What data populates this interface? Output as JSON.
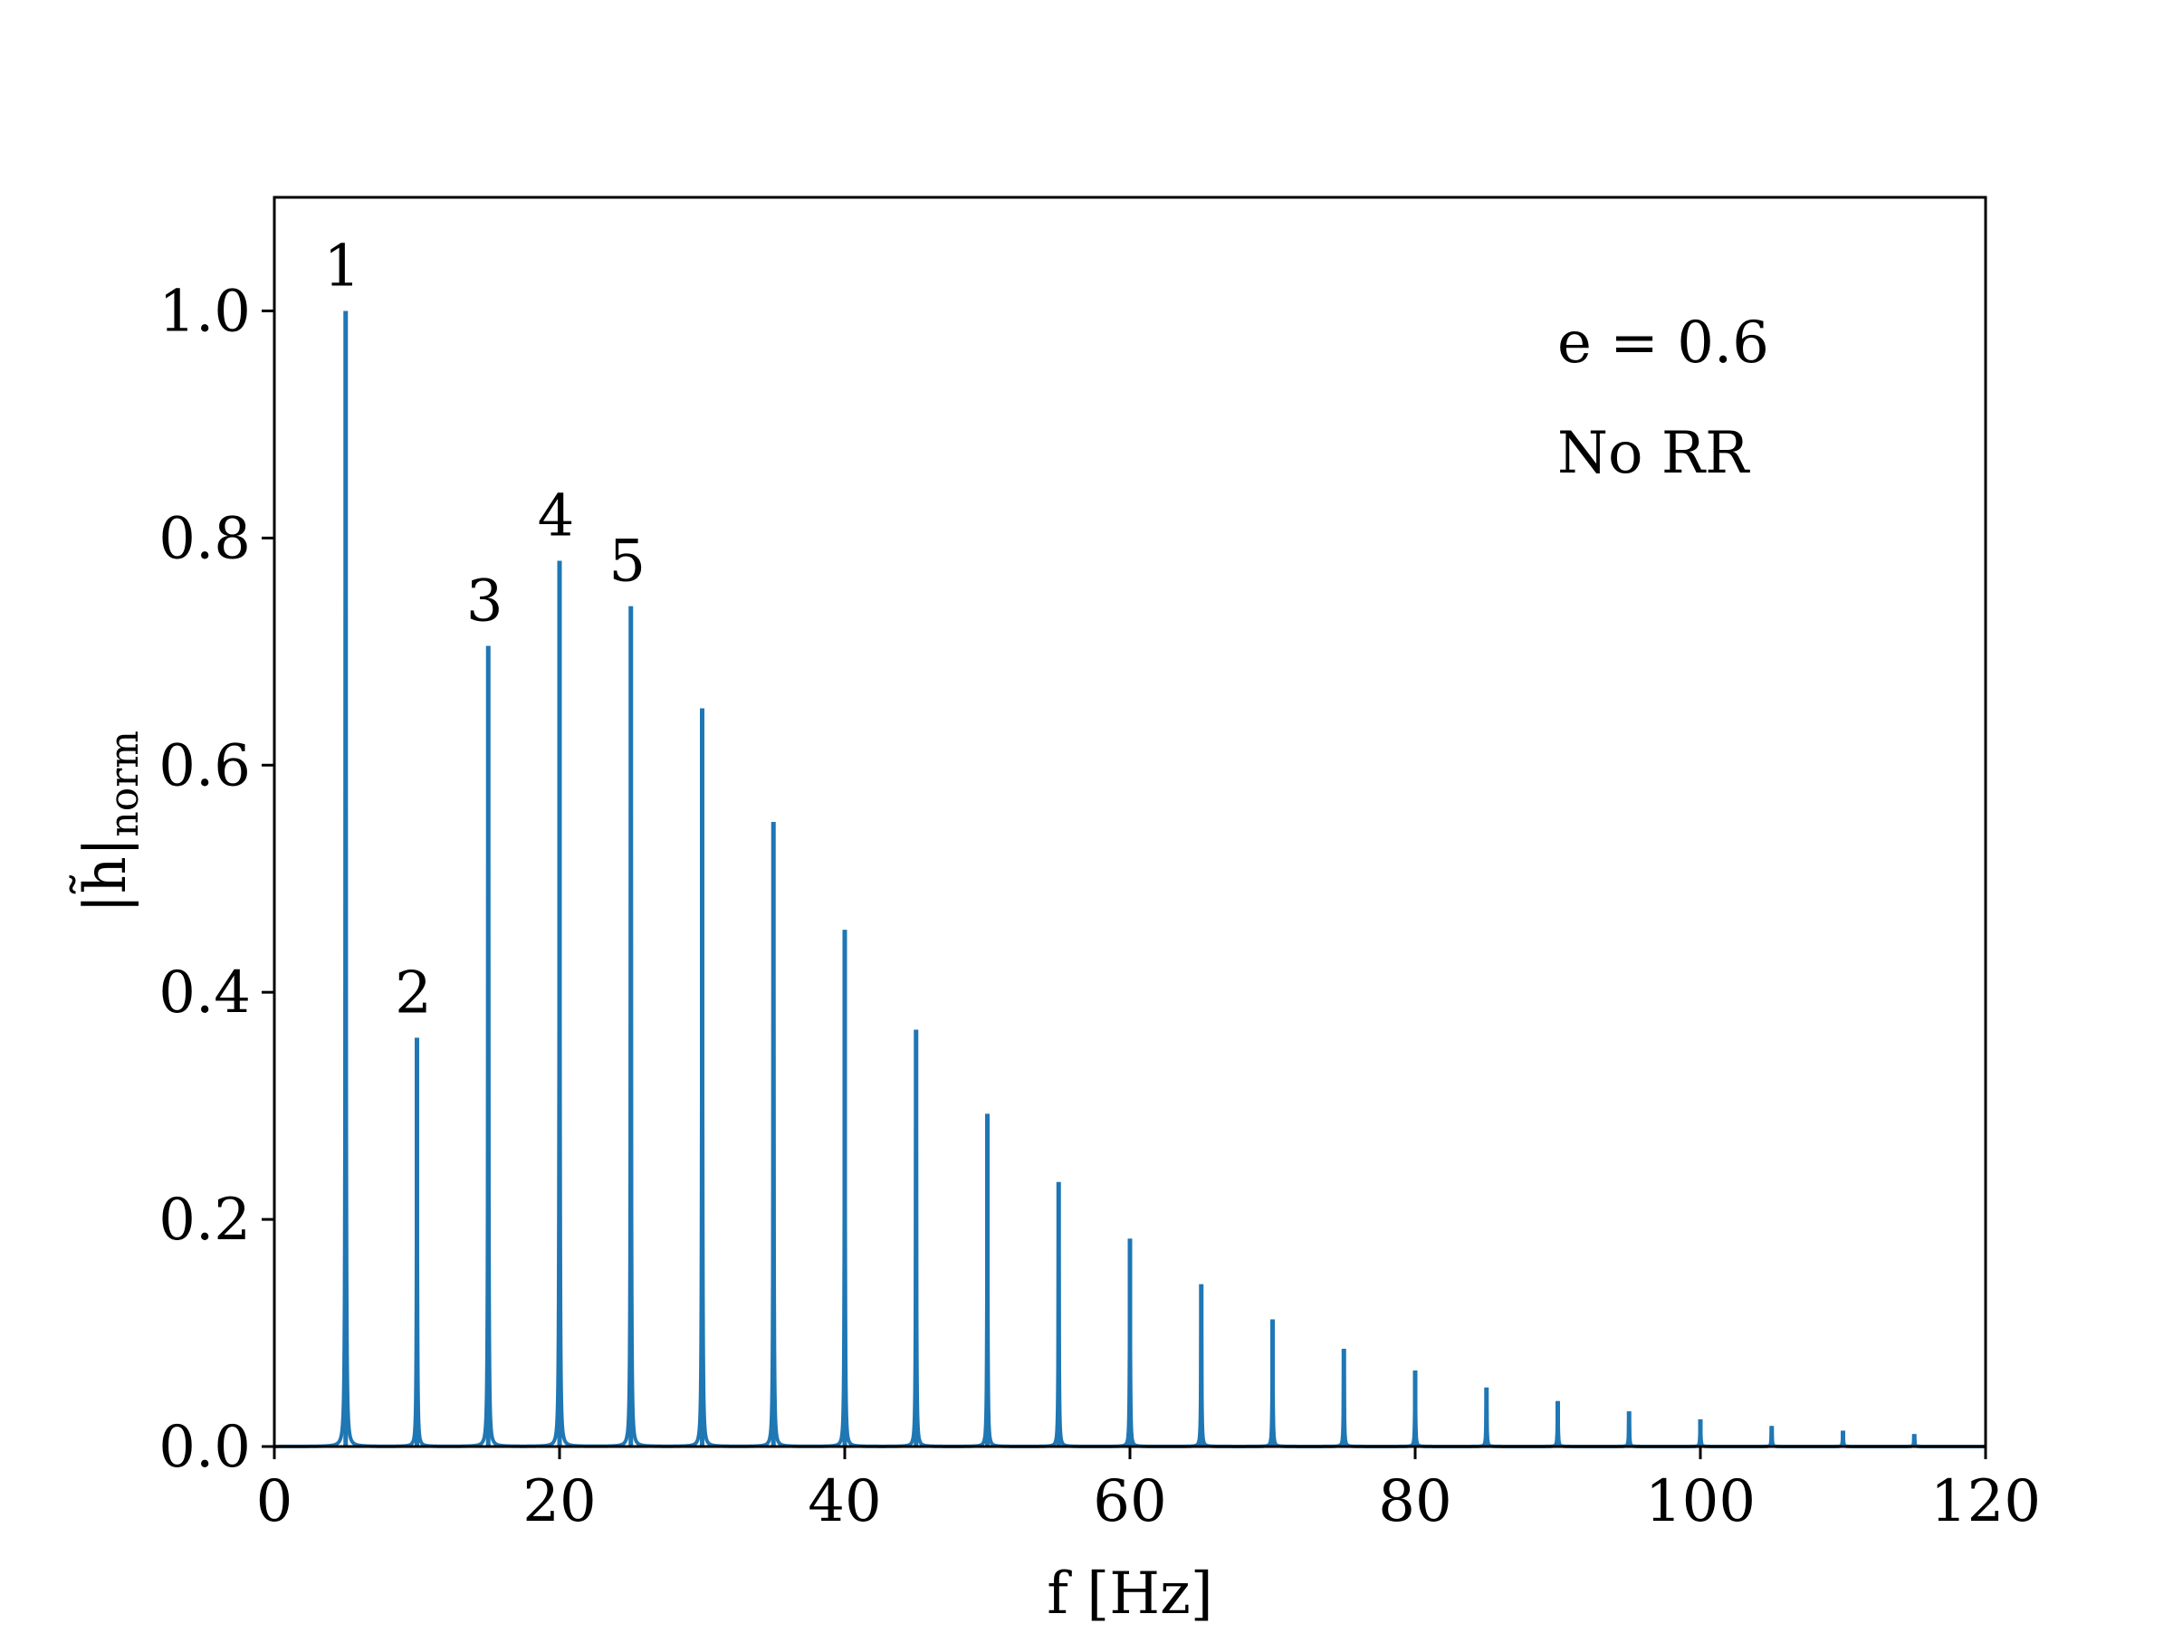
{
  "chart_data": {
    "type": "line",
    "title": "",
    "xlabel": "f [Hz]",
    "ylabel": {
      "main": "|h̃|",
      "subscript": "norm"
    },
    "xlim": [
      0,
      120
    ],
    "ylim": [
      0,
      1.1
    ],
    "xticks": [
      0,
      20,
      40,
      60,
      80,
      100,
      120
    ],
    "yticks": [
      0.0,
      0.2,
      0.4,
      0.6,
      0.8,
      1.0
    ],
    "xtick_labels": [
      "0",
      "20",
      "40",
      "60",
      "80",
      "100",
      "120"
    ],
    "ytick_labels": [
      "0.0",
      "0.2",
      "0.4",
      "0.6",
      "0.8",
      "1.0"
    ],
    "grid": false,
    "legend": "none",
    "series": [
      {
        "color": "#1f77b4",
        "peaks": [
          {
            "f": 5,
            "amp": 1.0
          },
          {
            "f": 10,
            "amp": 0.36
          },
          {
            "f": 15,
            "amp": 0.705
          },
          {
            "f": 20,
            "amp": 0.78
          },
          {
            "f": 25,
            "amp": 0.74
          },
          {
            "f": 30,
            "amp": 0.65
          },
          {
            "f": 35,
            "amp": 0.55
          },
          {
            "f": 40,
            "amp": 0.455
          },
          {
            "f": 45,
            "amp": 0.367
          },
          {
            "f": 50,
            "amp": 0.293
          },
          {
            "f": 55,
            "amp": 0.233
          },
          {
            "f": 60,
            "amp": 0.183
          },
          {
            "f": 65,
            "amp": 0.143
          },
          {
            "f": 70,
            "amp": 0.112
          },
          {
            "f": 75,
            "amp": 0.086
          },
          {
            "f": 80,
            "amp": 0.067
          },
          {
            "f": 85,
            "amp": 0.052
          },
          {
            "f": 90,
            "amp": 0.04
          },
          {
            "f": 95,
            "amp": 0.031
          },
          {
            "f": 100,
            "amp": 0.024
          },
          {
            "f": 105,
            "amp": 0.018
          },
          {
            "f": 110,
            "amp": 0.014
          },
          {
            "f": 115,
            "amp": 0.011
          }
        ]
      }
    ],
    "peak_labels": [
      {
        "text": "1",
        "f": 5,
        "amp": 1.0
      },
      {
        "text": "2",
        "f": 10,
        "amp": 0.36
      },
      {
        "text": "3",
        "f": 15,
        "amp": 0.705
      },
      {
        "text": "4",
        "f": 20,
        "amp": 0.78
      },
      {
        "text": "5",
        "f": 25,
        "amp": 0.74
      }
    ],
    "annotations": [
      "e = 0.6",
      "No RR"
    ]
  }
}
